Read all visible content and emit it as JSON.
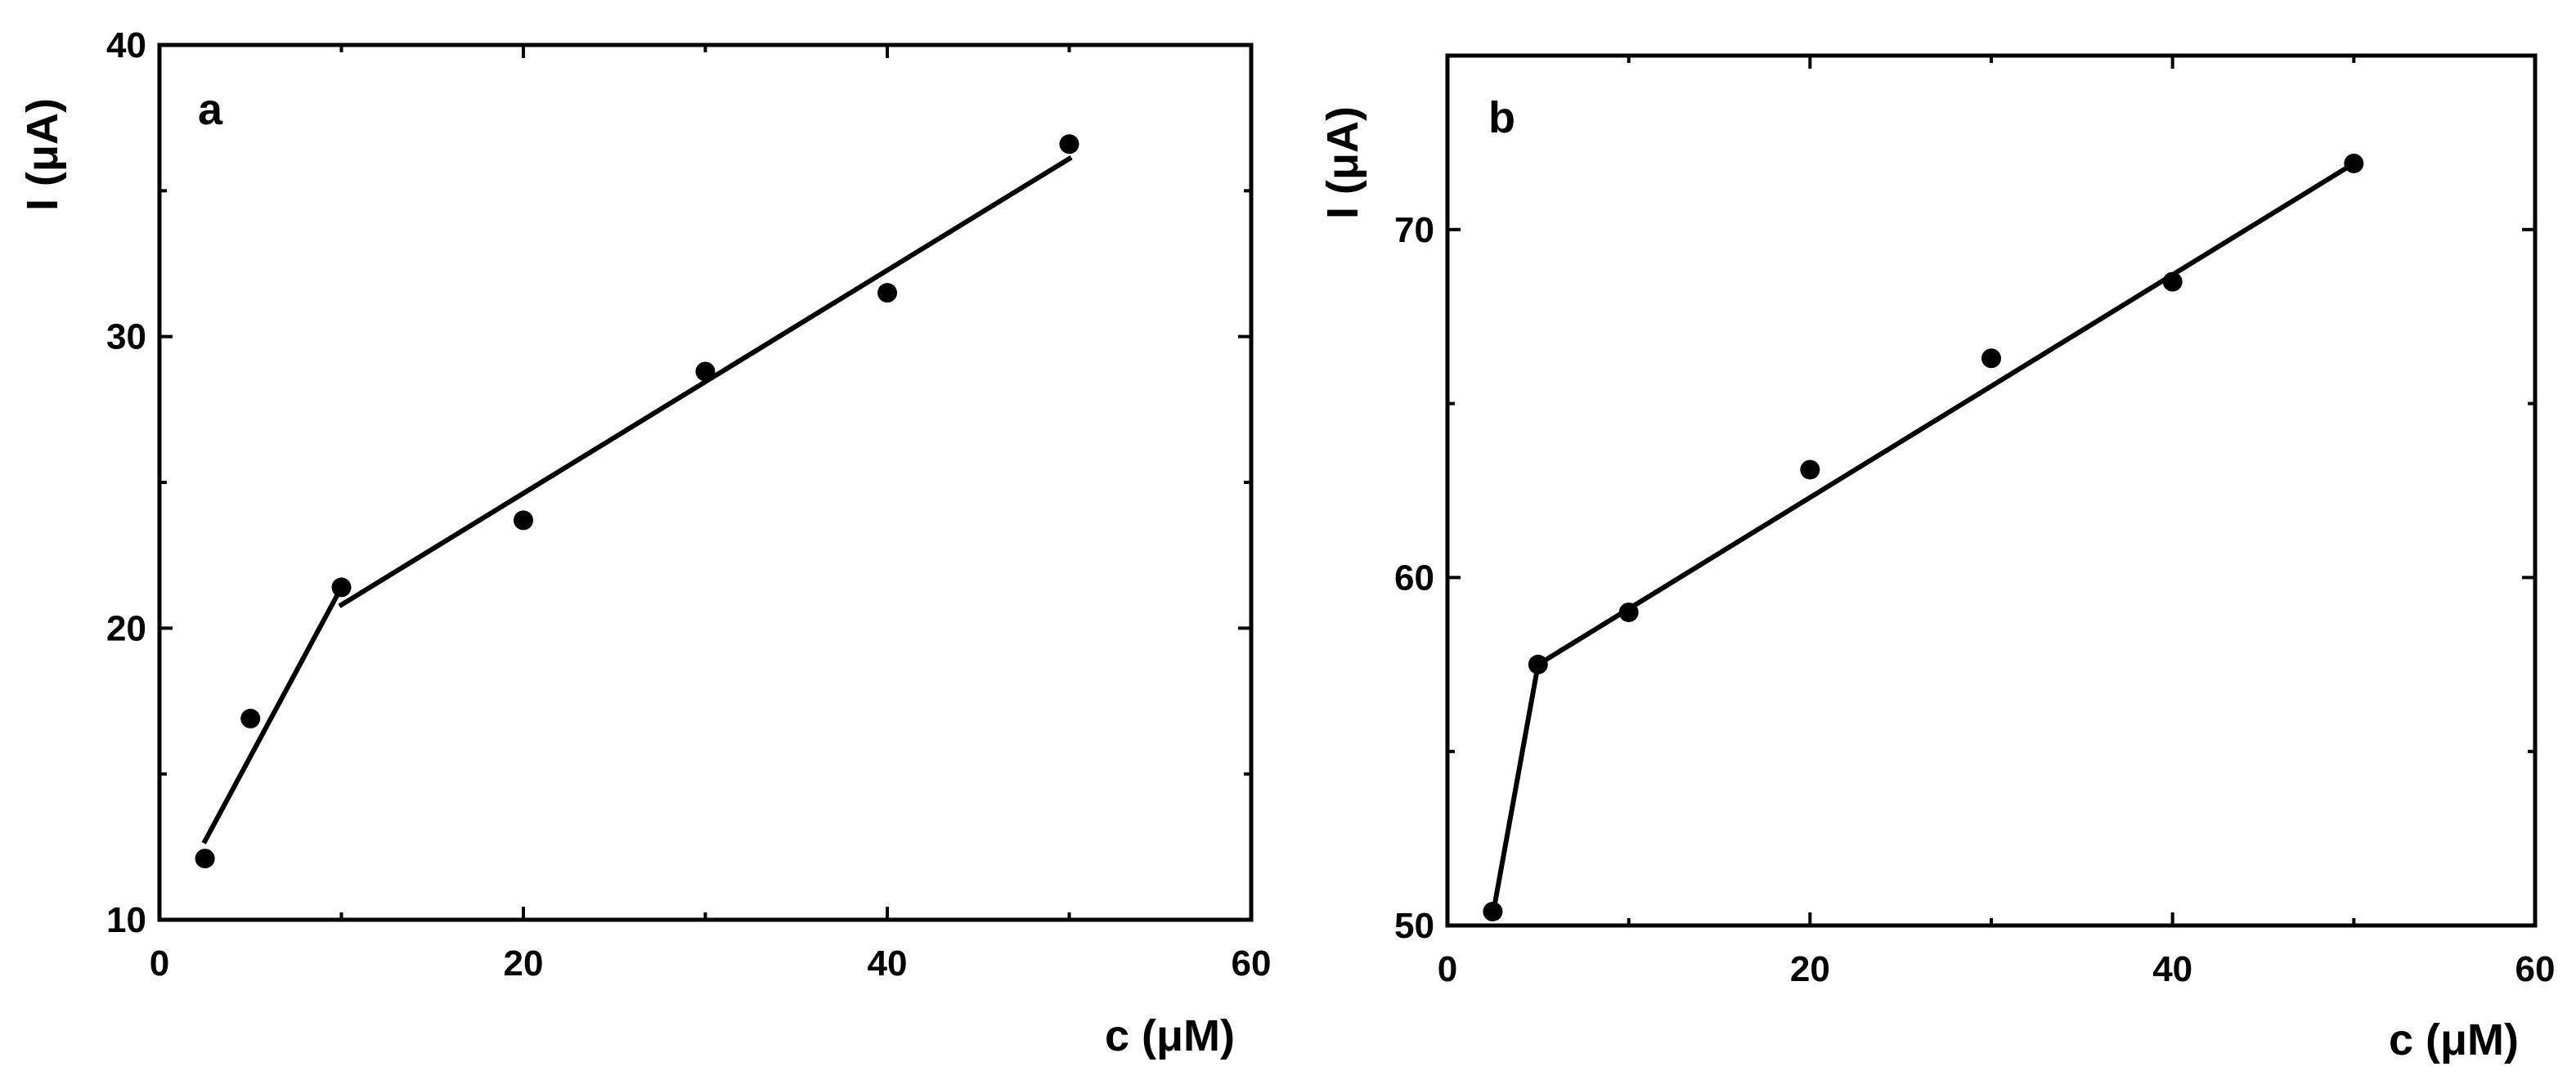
{
  "chart_data": [
    {
      "type": "scatter",
      "panel_label": "a",
      "xlabel": "c (μM)",
      "ylabel": "I (μA)",
      "xlim": [
        0,
        60
      ],
      "ylim": [
        10,
        40
      ],
      "xticks": [
        0,
        20,
        40,
        60
      ],
      "yticks": [
        10,
        20,
        30,
        40
      ],
      "grid": false,
      "points": {
        "x": [
          2.5,
          5,
          10,
          20,
          30,
          40,
          50
        ],
        "y": [
          12.1,
          16.9,
          21.4,
          23.7,
          28.8,
          31.5,
          36.6
        ]
      },
      "fit_lines": [
        {
          "x": [
            2.5,
            10
          ],
          "y": [
            12.7,
            21.4
          ]
        },
        {
          "x": [
            10,
            50
          ],
          "y": [
            20.8,
            36.1
          ]
        }
      ]
    },
    {
      "type": "scatter",
      "panel_label": "b",
      "xlabel": "c (μM)",
      "ylabel": "I (μA)",
      "xlim": [
        0,
        60
      ],
      "ylim": [
        50,
        75
      ],
      "xticks": [
        0,
        20,
        40,
        60
      ],
      "yticks": [
        50,
        60,
        70
      ],
      "grid": false,
      "points": {
        "x": [
          2.5,
          5,
          10,
          20,
          30,
          40,
          50
        ],
        "y": [
          50.4,
          57.5,
          59.0,
          63.1,
          66.3,
          68.5,
          71.9
        ]
      },
      "fit_lines": [
        {
          "x": [
            2.5,
            5
          ],
          "y": [
            50.3,
            57.5
          ]
        },
        {
          "x": [
            5,
            50
          ],
          "y": [
            57.5,
            71.9
          ]
        }
      ]
    }
  ]
}
